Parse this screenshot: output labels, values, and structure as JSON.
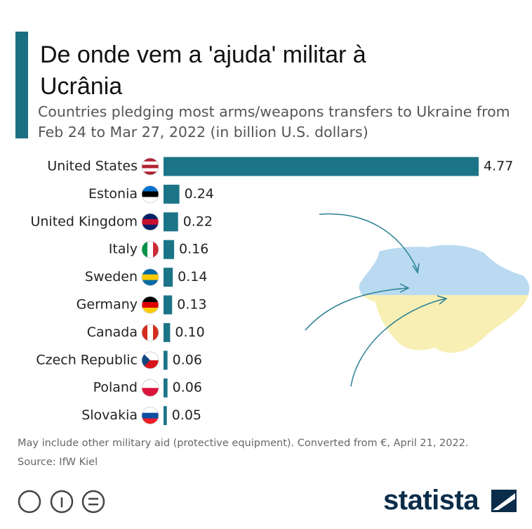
{
  "chart_data": {
    "type": "bar",
    "orientation": "horizontal",
    "title": "De onde vem a 'ajuda' militar à Ucrânia",
    "subtitle": "Countries pledging most arms/weapons transfers to Ukraine from Feb 24 to Mar 27, 2022 (in billion U.S. dollars)",
    "categories": [
      "United States",
      "Estonia",
      "United Kingdom",
      "Italy",
      "Sweden",
      "Germany",
      "Canada",
      "Czech Republic",
      "Poland",
      "Slovakia"
    ],
    "values": [
      4.77,
      0.24,
      0.22,
      0.16,
      0.14,
      0.13,
      0.1,
      0.06,
      0.06,
      0.05
    ],
    "value_labels": [
      "4.77",
      "0.24",
      "0.22",
      "0.16",
      "0.14",
      "0.13",
      "0.10",
      "0.06",
      "0.06",
      "0.05"
    ],
    "color": "#1c7487",
    "note": "May include other military aid (protective equipment). Converted from €, April 21, 2022.",
    "source": "Source: IfW Kiel",
    "logo": "statista"
  }
}
